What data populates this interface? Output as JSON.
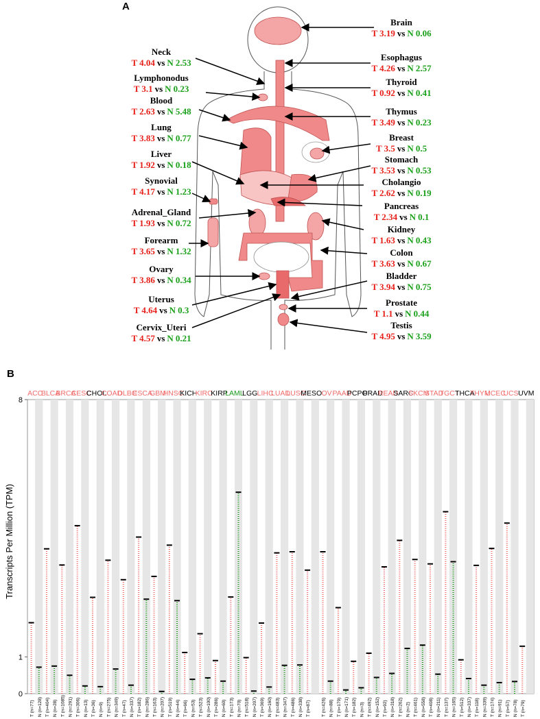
{
  "panel_a": {
    "label": "A",
    "tumor_prefix": "T",
    "separator": "vs",
    "normal_prefix": "N",
    "organs": [
      {
        "name": "Brain",
        "tumor": 3.19,
        "normal": 0.06
      },
      {
        "name": "Neck",
        "tumor": 4.04,
        "normal": 2.53
      },
      {
        "name": "Esophagus",
        "tumor": 4.26,
        "normal": 2.57
      },
      {
        "name": "Lymphonodus",
        "tumor": 3.1,
        "normal": 0.23
      },
      {
        "name": "Thyroid",
        "tumor": 0.92,
        "normal": 0.41
      },
      {
        "name": "Blood",
        "tumor": 2.63,
        "normal": 5.48
      },
      {
        "name": "Thymus",
        "tumor": 3.49,
        "normal": 0.23
      },
      {
        "name": "Lung",
        "tumor": 3.83,
        "normal": 0.77
      },
      {
        "name": "Breast",
        "tumor": 3.5,
        "normal": 0.5
      },
      {
        "name": "Liver",
        "tumor": 1.92,
        "normal": 0.18
      },
      {
        "name": "Stomach",
        "tumor": 3.53,
        "normal": 0.53
      },
      {
        "name": "Synovial",
        "tumor": 4.17,
        "normal": 1.23
      },
      {
        "name": "Cholangio",
        "tumor": 2.62,
        "normal": 0.19
      },
      {
        "name": "Adrenal_Gland",
        "tumor": 1.93,
        "normal": 0.72
      },
      {
        "name": "Pancreas",
        "tumor": 2.34,
        "normal": 0.1
      },
      {
        "name": "Kidney",
        "tumor": 1.63,
        "normal": 0.43
      },
      {
        "name": "Forearm",
        "tumor": 3.65,
        "normal": 1.32
      },
      {
        "name": "Colon",
        "tumor": 3.63,
        "normal": 0.67
      },
      {
        "name": "Ovary",
        "tumor": 3.86,
        "normal": 0.34
      },
      {
        "name": "Bladder",
        "tumor": 3.94,
        "normal": 0.75
      },
      {
        "name": "Uterus",
        "tumor": 4.64,
        "normal": 0.3
      },
      {
        "name": "Prostate",
        "tumor": 1.1,
        "normal": 0.44
      },
      {
        "name": "Cervix_Uteri",
        "tumor": 4.57,
        "normal": 0.21
      },
      {
        "name": "Testis",
        "tumor": 4.95,
        "normal": 3.59
      }
    ]
  },
  "chart_data": {
    "type": "dot",
    "panel_label": "B",
    "ylabel": "Transcripts Per Million (TPM)",
    "ylim": [
      0,
      8
    ],
    "yticks": [
      0,
      1,
      8
    ],
    "categories": [
      "ACC",
      "BLCA",
      "BRCA",
      "CESC",
      "CHOL",
      "COAD",
      "DLBC",
      "ESCA",
      "GBM",
      "HNSC",
      "KICH",
      "KIRC",
      "KIRP",
      "LAML",
      "LGG",
      "LIHC",
      "LUAD",
      "LUSC",
      "MESO",
      "OV",
      "PAAD",
      "PCPG",
      "PRAD",
      "READ",
      "SARC",
      "SKCM",
      "STAD",
      "TGCT",
      "THCA",
      "THYM",
      "UCEC",
      "UCS",
      "UVM"
    ],
    "category_colors": [
      "#f26b6b",
      "#f26b6b",
      "#f26b6b",
      "#f26b6b",
      "#000000",
      "#f26b6b",
      "#f26b6b",
      "#f26b6b",
      "#f26b6b",
      "#f26b6b",
      "#000000",
      "#f26b6b",
      "#000000",
      "#1a9a1a",
      "#000000",
      "#f26b6b",
      "#f26b6b",
      "#f26b6b",
      "#000000",
      "#f26b6b",
      "#f26b6b",
      "#000000",
      "#000000",
      "#f26b6b",
      "#000000",
      "#f26b6b",
      "#f26b6b",
      "#f26b6b",
      "#000000",
      "#f26b6b",
      "#f26b6b",
      "#f26b6b",
      "#000000"
    ],
    "tumor_sample_labels": [
      "T (n=77)",
      "T (n=404)",
      "T (n=1085)",
      "T (n=306)",
      "T (n=36)",
      "T (n=275)",
      "T (n=47)",
      "T (n=182)",
      "T (n=163)",
      "T (n=519)",
      "T (n=66)",
      "T (n=523)",
      "T (n=286)",
      "T (n=173)",
      "T (n=518)",
      "T (n=369)",
      "T (n=483)",
      "T (n=486)",
      "T (n=87)",
      "T (n=426)",
      "T (n=179)",
      "T (n=182)",
      "T (n=492)",
      "T (n=92)",
      "T (n=262)",
      "T (n=461)",
      "T (n=408)",
      "T (n=137)",
      "T (n=512)",
      "T (n=118)",
      "T (n=174)",
      "T (n=57)",
      "T (n=79)"
    ],
    "normal_sample_labels": [
      "N (n=128)",
      "N (n=28)",
      "N (n=291)",
      "N (n=13)",
      "N (n=9)",
      "N (n=349)",
      "N (n=337)",
      "N (n=286)",
      "N (n=207)",
      "N (n=44)",
      "N (n=53)",
      "N (n=100)",
      "N (n=60)",
      "N (n=70)",
      "N (n=207)",
      "N (n=160)",
      "N (n=347)",
      "N (n=338)",
      null,
      "N (n=88)",
      "N (n=171)",
      "N (n=3)",
      "N (n=152)",
      "N (n=318)",
      "N (n=2)",
      "N (n=558)",
      "N (n=211)",
      "N (n=165)",
      "N (n=337)",
      "N (n=339)",
      "N (n=91)",
      "N (n=78)",
      null
    ],
    "series": [
      {
        "color": "#f26b6b",
        "values": [
          1.93,
          3.94,
          3.5,
          4.57,
          2.62,
          3.63,
          3.1,
          4.26,
          3.19,
          4.04,
          1.12,
          1.63,
          0.9,
          2.63,
          0.98,
          1.92,
          3.83,
          3.86,
          3.36,
          3.86,
          2.34,
          0.88,
          1.1,
          3.45,
          4.17,
          3.65,
          3.53,
          4.95,
          0.92,
          3.49,
          3.95,
          4.64,
          1.29
        ]
      },
      {
        "color": "#1a9a1a",
        "values": [
          0.72,
          0.75,
          0.5,
          0.21,
          0.19,
          0.67,
          0.23,
          2.57,
          0.06,
          2.53,
          0.39,
          0.43,
          0.34,
          5.48,
          0.07,
          0.18,
          0.77,
          0.78,
          null,
          0.34,
          0.1,
          0.16,
          0.44,
          0.55,
          1.23,
          1.32,
          0.53,
          3.59,
          0.41,
          0.23,
          0.3,
          0.33,
          null
        ]
      }
    ]
  }
}
